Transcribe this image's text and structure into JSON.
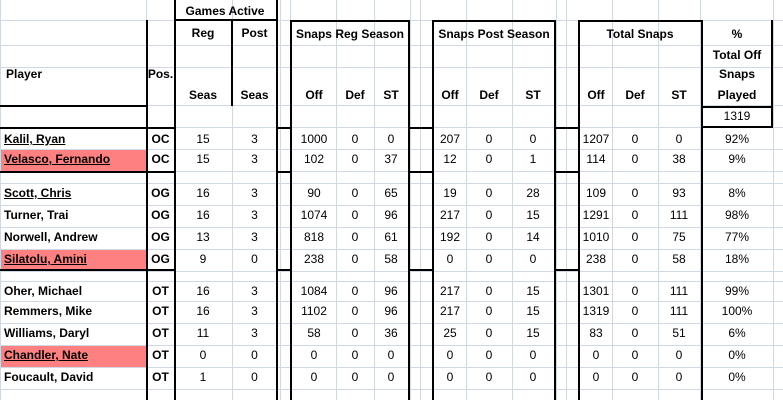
{
  "header": {
    "games_active": "Games Active",
    "reg": "Reg",
    "post": "Post",
    "seas": "Seas",
    "player": "Player",
    "pos": "Pos.",
    "snaps_reg": "Snaps Reg Season",
    "snaps_post": "Snaps Post Season",
    "total_snaps": "Total Snaps",
    "pct": "%",
    "total_off": "Total Off",
    "snaps": "Snaps",
    "played": "Played",
    "off": "Off",
    "def": "Def",
    "st": "ST",
    "total_off_snaps_value": "1319"
  },
  "highlight_color": "#ff8080",
  "rows": [
    {
      "name": "Kalil, Ryan",
      "pos": "OC",
      "reg": "15",
      "post": "3",
      "r_off": "1000",
      "r_def": "0",
      "r_st": "0",
      "p_off": "207",
      "p_def": "0",
      "p_st": "0",
      "t_off": "1207",
      "t_def": "0",
      "t_st": "0",
      "pct": "92%",
      "hl": false,
      "underline": true
    },
    {
      "name": "Velasco, Fernando",
      "pos": "OC",
      "reg": "15",
      "post": "3",
      "r_off": "102",
      "r_def": "0",
      "r_st": "37",
      "p_off": "12",
      "p_def": "0",
      "p_st": "1",
      "t_off": "114",
      "t_def": "0",
      "t_st": "38",
      "pct": "9%",
      "hl": true,
      "underline": true
    },
    {
      "name": "Scott, Chris",
      "pos": "OG",
      "reg": "16",
      "post": "3",
      "r_off": "90",
      "r_def": "0",
      "r_st": "65",
      "p_off": "19",
      "p_def": "0",
      "p_st": "28",
      "t_off": "109",
      "t_def": "0",
      "t_st": "93",
      "pct": "8%",
      "hl": false,
      "underline": true
    },
    {
      "name": "Turner, Trai",
      "pos": "OG",
      "reg": "16",
      "post": "3",
      "r_off": "1074",
      "r_def": "0",
      "r_st": "96",
      "p_off": "217",
      "p_def": "0",
      "p_st": "15",
      "t_off": "1291",
      "t_def": "0",
      "t_st": "111",
      "pct": "98%",
      "hl": false,
      "underline": false
    },
    {
      "name": "Norwell, Andrew",
      "pos": "OG",
      "reg": "13",
      "post": "3",
      "r_off": "818",
      "r_def": "0",
      "r_st": "61",
      "p_off": "192",
      "p_def": "0",
      "p_st": "14",
      "t_off": "1010",
      "t_def": "0",
      "t_st": "75",
      "pct": "77%",
      "hl": false,
      "underline": false
    },
    {
      "name": "Silatolu, Amini",
      "pos": "OG",
      "reg": "9",
      "post": "0",
      "r_off": "238",
      "r_def": "0",
      "r_st": "58",
      "p_off": "0",
      "p_def": "0",
      "p_st": "0",
      "t_off": "238",
      "t_def": "0",
      "t_st": "58",
      "pct": "18%",
      "hl": true,
      "underline": true
    },
    {
      "name": "Oher, Michael",
      "pos": "OT",
      "reg": "16",
      "post": "3",
      "r_off": "1084",
      "r_def": "0",
      "r_st": "96",
      "p_off": "217",
      "p_def": "0",
      "p_st": "15",
      "t_off": "1301",
      "t_def": "0",
      "t_st": "111",
      "pct": "99%",
      "hl": false,
      "underline": false
    },
    {
      "name": "Remmers, Mike",
      "pos": "OT",
      "reg": "16",
      "post": "3",
      "r_off": "1102",
      "r_def": "0",
      "r_st": "96",
      "p_off": "217",
      "p_def": "0",
      "p_st": "15",
      "t_off": "1319",
      "t_def": "0",
      "t_st": "111",
      "pct": "100%",
      "hl": false,
      "underline": false
    },
    {
      "name": "Williams, Daryl",
      "pos": "OT",
      "reg": "11",
      "post": "3",
      "r_off": "58",
      "r_def": "0",
      "r_st": "36",
      "p_off": "25",
      "p_def": "0",
      "p_st": "15",
      "t_off": "83",
      "t_def": "0",
      "t_st": "51",
      "pct": "6%",
      "hl": false,
      "underline": false
    },
    {
      "name": "Chandler, Nate",
      "pos": "OT",
      "reg": "0",
      "post": "0",
      "r_off": "0",
      "r_def": "0",
      "r_st": "0",
      "p_off": "0",
      "p_def": "0",
      "p_st": "0",
      "t_off": "0",
      "t_def": "0",
      "t_st": "0",
      "pct": "0%",
      "hl": true,
      "underline": true
    },
    {
      "name": "Foucault, David",
      "pos": "OT",
      "reg": "1",
      "post": "0",
      "r_off": "0",
      "r_def": "0",
      "r_st": "0",
      "p_off": "0",
      "p_def": "0",
      "p_st": "0",
      "t_off": "0",
      "t_def": "0",
      "t_st": "0",
      "pct": "0%",
      "hl": false,
      "underline": false
    }
  ]
}
